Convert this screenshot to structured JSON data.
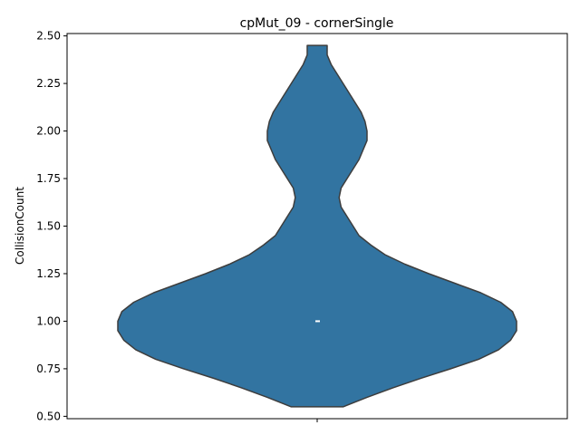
{
  "chart_data": {
    "type": "violin",
    "title": "cpMut_09 - cornerSingle",
    "xlabel": "",
    "ylabel": "CollisionCount",
    "ylim": [
      0.4875,
      2.5125
    ],
    "yticks": [
      0.5,
      0.75,
      1.0,
      1.25,
      1.5,
      1.75,
      2.0,
      2.25,
      2.5
    ],
    "ytick_labels": [
      "0.50",
      "0.75",
      "1.00",
      "1.25",
      "1.50",
      "1.75",
      "2.00",
      "2.25",
      "2.50"
    ],
    "xtick_labels": [
      ""
    ],
    "grid": false,
    "legend": "none",
    "colors": {
      "fill": "#3274a1",
      "edge": "#3d3d3d",
      "median": "#ffffff"
    },
    "violin": {
      "y_range": [
        0.55,
        2.45
      ],
      "median": 1.0,
      "density_profile": [
        [
          0.55,
          0.13
        ],
        [
          0.6,
          0.25
        ],
        [
          0.65,
          0.38
        ],
        [
          0.7,
          0.52
        ],
        [
          0.75,
          0.67
        ],
        [
          0.8,
          0.81
        ],
        [
          0.85,
          0.91
        ],
        [
          0.9,
          0.97
        ],
        [
          0.95,
          1.0
        ],
        [
          1.0,
          1.0
        ],
        [
          1.05,
          0.98
        ],
        [
          1.1,
          0.92
        ],
        [
          1.15,
          0.82
        ],
        [
          1.2,
          0.69
        ],
        [
          1.25,
          0.56
        ],
        [
          1.3,
          0.44
        ],
        [
          1.35,
          0.34
        ],
        [
          1.4,
          0.27
        ],
        [
          1.45,
          0.21
        ],
        [
          1.5,
          0.18
        ],
        [
          1.55,
          0.15
        ],
        [
          1.6,
          0.12
        ],
        [
          1.65,
          0.11
        ],
        [
          1.7,
          0.12
        ],
        [
          1.75,
          0.15
        ],
        [
          1.8,
          0.18
        ],
        [
          1.85,
          0.21
        ],
        [
          1.9,
          0.23
        ],
        [
          1.95,
          0.25
        ],
        [
          2.0,
          0.25
        ],
        [
          2.05,
          0.24
        ],
        [
          2.1,
          0.22
        ],
        [
          2.15,
          0.19
        ],
        [
          2.2,
          0.16
        ],
        [
          2.25,
          0.13
        ],
        [
          2.3,
          0.1
        ],
        [
          2.35,
          0.07
        ],
        [
          2.4,
          0.05
        ],
        [
          2.45,
          0.05
        ]
      ]
    }
  }
}
